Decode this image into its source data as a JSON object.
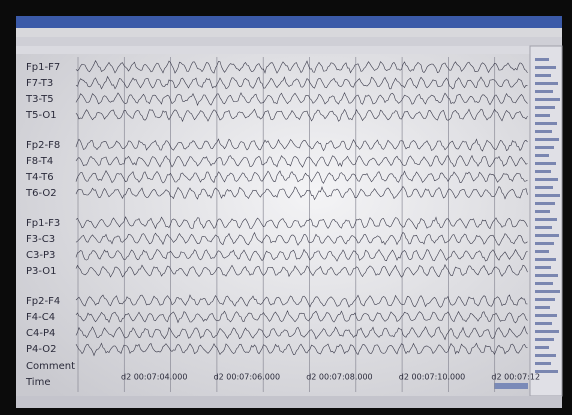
{
  "channels": [
    "Fp1-F7",
    "F7-T3",
    "T3-T5",
    "T5-O1",
    "Fp2-F8",
    "F8-T4",
    "T4-T6",
    "T6-O2",
    "Fp1-F3",
    "F3-C3",
    "C3-P3",
    "P3-O1",
    "Fp2-F4",
    "F4-C4",
    "C4-P4",
    "P4-O2"
  ],
  "rows": {
    "comment": "Comment",
    "time": "Time"
  },
  "time_labels": [
    "d2 00:07:04.000",
    "d2 00:07:06.000",
    "d2 00:07:08.000",
    "d2 00:07:10.000",
    "d2 00:07:12"
  ]
}
